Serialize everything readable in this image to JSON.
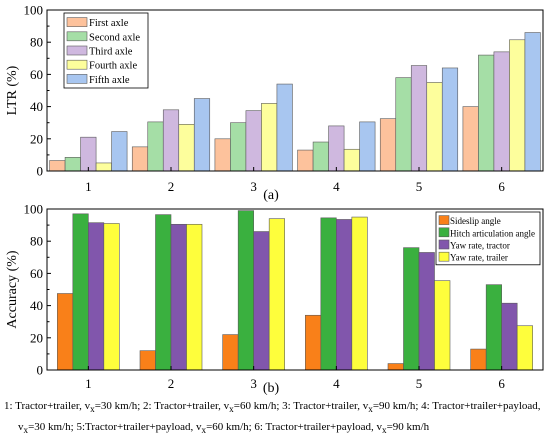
{
  "chart_data": [
    {
      "type": "bar",
      "panel_label": "(a)",
      "ylabel": "LTR (%)",
      "ylim": [
        0,
        100
      ],
      "yticks": [
        "0",
        "20",
        "40",
        "60",
        "80",
        "100"
      ],
      "categories": [
        "1",
        "2",
        "3",
        "4",
        "5",
        "6"
      ],
      "legend_position": "top-left",
      "series": [
        {
          "name": "First axle",
          "color": "#fdc29c",
          "values": [
            6.5,
            15,
            20,
            13,
            32.5,
            40
          ]
        },
        {
          "name": "Second axle",
          "color": "#a5dea6",
          "values": [
            8.5,
            30.5,
            30,
            18,
            58,
            72
          ]
        },
        {
          "name": "Third axle",
          "color": "#cfb8df",
          "values": [
            21,
            38,
            37.5,
            28,
            65.5,
            74
          ]
        },
        {
          "name": "Fourth axle",
          "color": "#fdfe9c",
          "values": [
            5,
            29,
            42,
            13.5,
            55,
            81.5
          ]
        },
        {
          "name": "Fifth axle",
          "color": "#a8c6f0",
          "values": [
            24.5,
            45,
            54,
            30.5,
            64,
            86
          ]
        }
      ]
    },
    {
      "type": "bar",
      "panel_label": "(b)",
      "ylabel": "Accuracy (%)",
      "ylim": [
        0,
        100
      ],
      "yticks": [
        "0",
        "20",
        "40",
        "60",
        "80",
        "100"
      ],
      "categories": [
        "1",
        "2",
        "3",
        "4",
        "5",
        "6"
      ],
      "legend_position": "top-right",
      "series": [
        {
          "name": "Sideslip angle",
          "color": "#f98019",
          "values": [
            47.5,
            12,
            22,
            34,
            4,
            13
          ]
        },
        {
          "name": "Hitch articulation angle",
          "color": "#3ab03f",
          "values": [
            97,
            96.5,
            99,
            94.5,
            76,
            53
          ]
        },
        {
          "name": "Yaw rate, tractor",
          "color": "#8156ac",
          "values": [
            91.5,
            90.5,
            86,
            93.5,
            73,
            41.5
          ]
        },
        {
          "name": "Yaw rate, trailer",
          "color": "#fefe3c",
          "values": [
            91,
            90.5,
            94,
            95,
            55.5,
            27.5
          ]
        }
      ]
    }
  ],
  "caption": {
    "line1": [
      "1: Tractor+trailer, v",
      "x",
      "=30 km/h; 2: Tractor+trailer, v",
      "x",
      "=60 km/h; 3: Tractor+trailer, v",
      "x",
      "=90 km/h; 4: Tractor+trailer+payload,"
    ],
    "line2": [
      "v",
      "x",
      "=30 km/h; 5:Tractor+trailer+payload, v",
      "x",
      "=60 km/h; 6: Tractor+trailer+payload, v",
      "x",
      "=90 km/h"
    ]
  }
}
